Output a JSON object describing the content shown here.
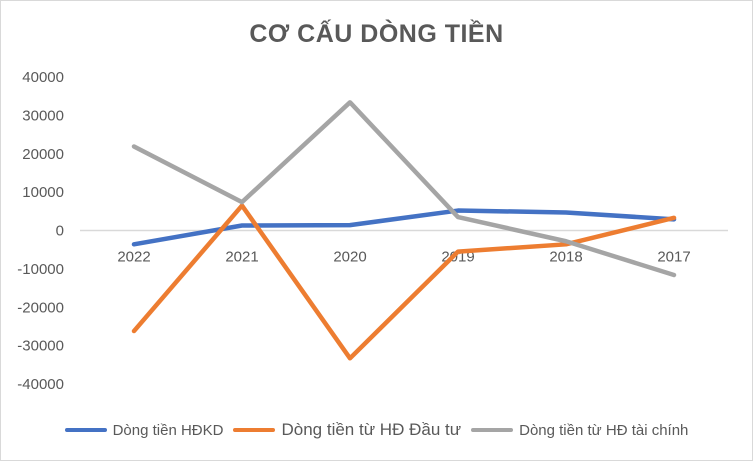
{
  "chart_data": {
    "type": "line",
    "title": "CƠ CẤU DÒNG TIỀN",
    "xlabel": "",
    "ylabel": "",
    "categories": [
      "2022",
      "2021",
      "2020",
      "2019",
      "2018",
      "2017"
    ],
    "ylim": [
      -40000,
      40000
    ],
    "yticks": [
      "40000",
      "30000",
      "20000",
      "10000",
      "0",
      "-10000",
      "-20000",
      "-30000",
      "-40000"
    ],
    "grid": false,
    "legend": "bottom",
    "series": [
      {
        "name": "Dòng tiền HĐKD",
        "color": "#4472c4",
        "values": [
          -3600,
          1300,
          1400,
          5200,
          4700,
          2900
        ]
      },
      {
        "name": "Dòng tiền từ HĐ Đầu tư",
        "color": "#ed7d31",
        "values": [
          -26200,
          6500,
          -33300,
          -5500,
          -3600,
          3300
        ]
      },
      {
        "name": "Dòng tiền từ HĐ tài chính",
        "color": "#a5a5a5",
        "values": [
          21900,
          7400,
          33400,
          3500,
          -2800,
          -11600
        ]
      }
    ]
  }
}
